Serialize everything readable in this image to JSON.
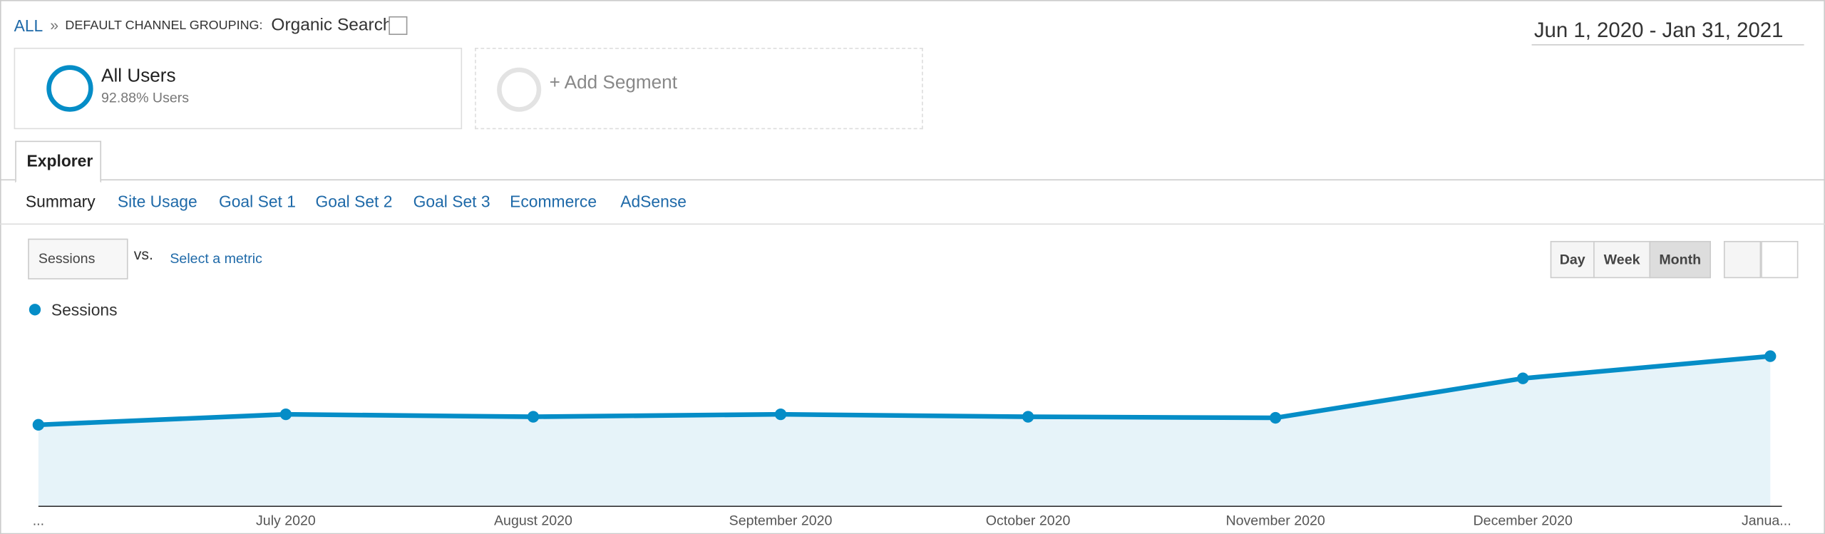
{
  "breadcrumb": {
    "root": "ALL",
    "separator": "»",
    "grouping_label": "DEFAULT CHANNEL GROUPING:",
    "grouping_value": "Organic Search"
  },
  "date_range": "Jun 1, 2020 - Jan 31, 2021",
  "segments": {
    "active_name": "All Users",
    "active_detail": "92.88% Users",
    "add": "+ Add Segment"
  },
  "tab": "Explorer",
  "subtabs": [
    "Summary",
    "Site Usage",
    "Goal Set 1",
    "Goal Set 2",
    "Goal Set 3",
    "Ecommerce",
    "AdSense"
  ],
  "metric_selector": {
    "metric": "Sessions",
    "vs": "vs.",
    "compare": "Select a metric"
  },
  "granularity": [
    "Day",
    "Week",
    "Month"
  ],
  "chart_data": {
    "type": "line",
    "categories": [
      "...",
      "July 2020",
      "August 2020",
      "September 2020",
      "October 2020",
      "November 2020",
      "December 2020",
      "Janua..."
    ],
    "series": [
      {
        "name": "Sessions",
        "color": "#058dc7",
        "values": [
          46.7,
          52.7,
          51.3,
          52.7,
          51.3,
          50.7,
          73.3,
          86
        ]
      }
    ],
    "ylim": [
      0,
      100
    ]
  }
}
